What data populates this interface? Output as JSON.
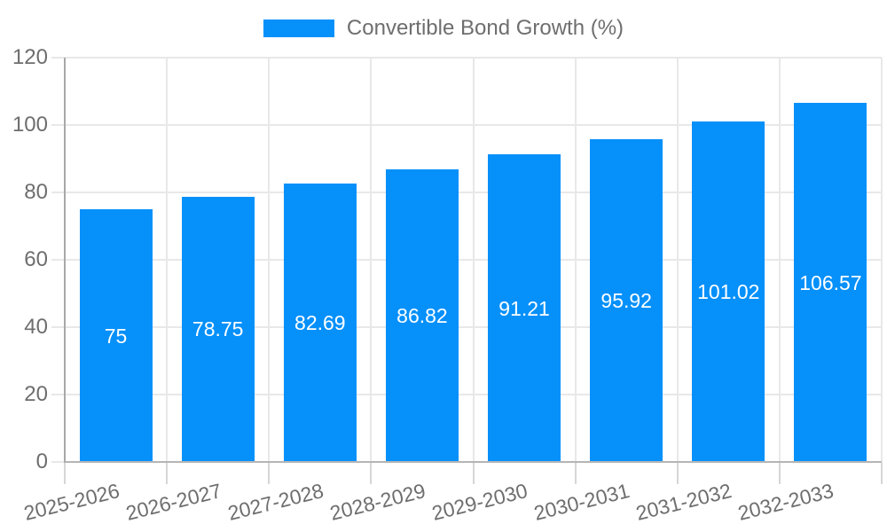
{
  "chart_data": {
    "type": "bar",
    "title": "",
    "categories": [
      "2025-2026",
      "2026-2027",
      "2027-2028",
      "2028-2029",
      "2029-2030",
      "2030-2031",
      "2031-2032",
      "2032-2033"
    ],
    "series": [
      {
        "name": "Convertible Bond Growth (%)",
        "color": "#0590FA",
        "values": [
          75,
          78.75,
          82.69,
          86.82,
          91.21,
          95.92,
          101.02,
          106.57
        ]
      }
    ],
    "value_labels": [
      "75",
      "78.75",
      "82.69",
      "86.82",
      "91.21",
      "95.92",
      "101.02",
      "106.57"
    ],
    "xlabel": "",
    "ylabel": "",
    "ylim": [
      0,
      120
    ],
    "yticks": [
      0,
      20,
      40,
      60,
      80,
      100,
      120
    ],
    "grid": true,
    "legend_position": "top",
    "value_label_color": "#ffffff",
    "axis_text_color": "#6e6e6e"
  }
}
